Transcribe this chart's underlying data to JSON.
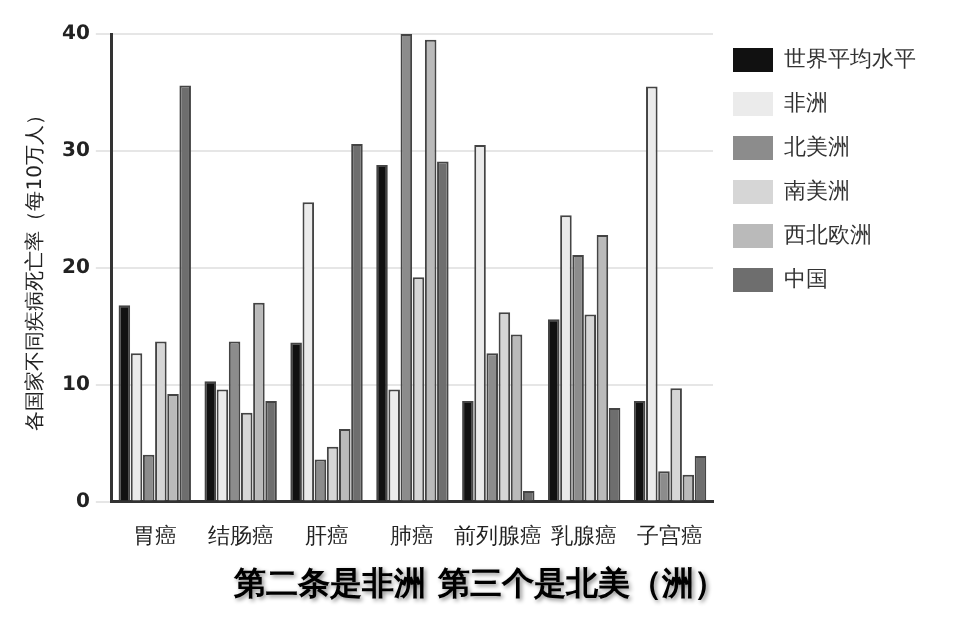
{
  "chart_data": {
    "type": "bar",
    "ylabel": "各国家不同疾病死亡率（每10万人）",
    "categories": [
      "胃癌",
      "结肠癌",
      "肝癌",
      "肺癌",
      "前列腺癌",
      "乳腺癌",
      "子宫癌"
    ],
    "series": [
      {
        "name": "世界平均水平",
        "color": "#111111",
        "values": [
          16.8,
          10.3,
          13.6,
          28.8,
          8.6,
          15.6,
          8.6
        ]
      },
      {
        "name": "非洲",
        "color": "#ebebeb",
        "values": [
          12.7,
          9.6,
          25.6,
          9.6,
          30.5,
          24.5,
          35.5
        ]
      },
      {
        "name": "北美洲",
        "color": "#8c8c8c",
        "values": [
          4,
          13.7,
          3.6,
          40,
          12.7,
          21.1,
          2.6
        ]
      },
      {
        "name": "南美洲",
        "color": "#d6d6d6",
        "values": [
          13.7,
          7.6,
          4.7,
          19.2,
          16.2,
          16,
          9.7
        ]
      },
      {
        "name": "西北欧洲",
        "color": "#bababa",
        "values": [
          9.2,
          17,
          6.2,
          39.5,
          14.3,
          22.8,
          2.3
        ]
      },
      {
        "name": "中国",
        "color": "#6e6e6e",
        "values": [
          35.6,
          8.6,
          30.6,
          29.1,
          0.9,
          8,
          3.9
        ]
      }
    ],
    "ylim": [
      0,
      40
    ],
    "yticks": [
      0,
      10,
      20,
      30,
      40
    ],
    "grid": "y",
    "legend": "top right",
    "annotations": [
      "第二条是非洲 第三个是北美（洲）"
    ]
  }
}
